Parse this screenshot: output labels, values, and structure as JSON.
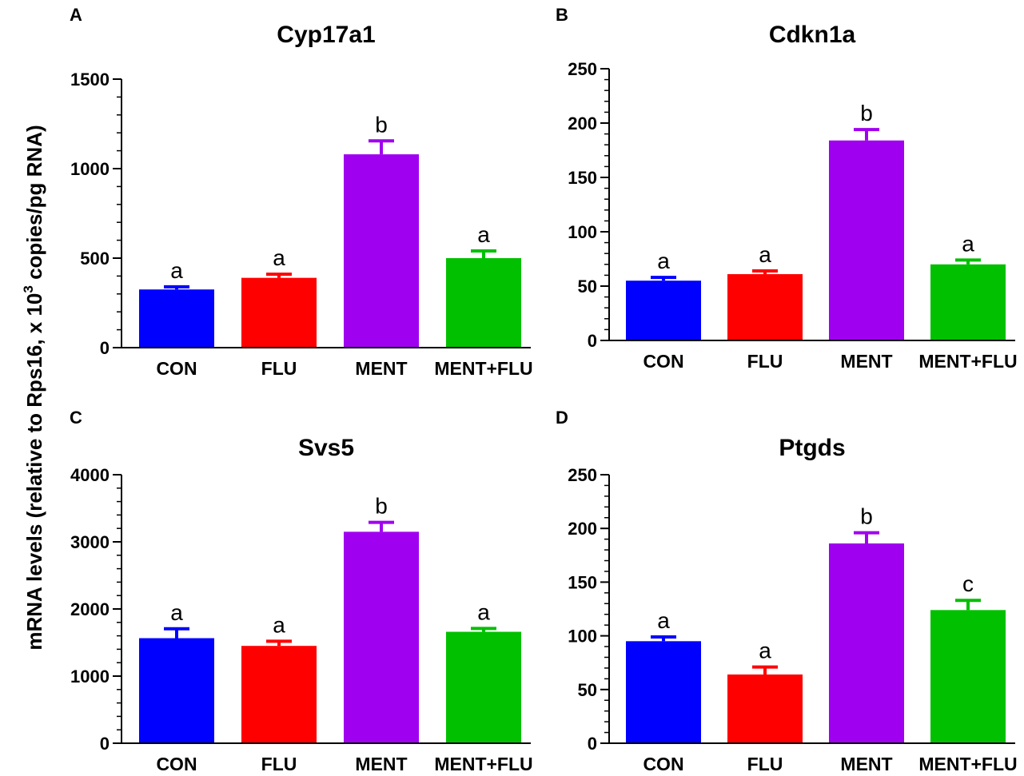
{
  "figure": {
    "ylabel_prefix": "mRNA levels (relative to  Rps16, x 10",
    "ylabel_sup": "3",
    "ylabel_suffix": " copies/pg  RNA)"
  },
  "chart_data": [
    {
      "panel": "A",
      "type": "bar",
      "title": "Cyp17a1",
      "categories": [
        "CON",
        "FLU",
        "MENT",
        "MENT+FLU"
      ],
      "values": [
        325,
        390,
        1080,
        500
      ],
      "errors": [
        15,
        20,
        75,
        40
      ],
      "significance": [
        "a",
        "a",
        "b",
        "a"
      ],
      "colors": [
        "#0000ff",
        "#ff0000",
        "#a000f0",
        "#00c000"
      ],
      "ylim": [
        0,
        1500
      ],
      "yticks": [
        0,
        500,
        1000,
        1500
      ],
      "minor_step": 100,
      "xlabel": "",
      "ylabel": "mRNA levels (relative to Rps16, x 10^3 copies/pg RNA)"
    },
    {
      "panel": "B",
      "type": "bar",
      "title": "Cdkn1a",
      "categories": [
        "CON",
        "FLU",
        "MENT",
        "MENT+FLU"
      ],
      "values": [
        55,
        61,
        184,
        70
      ],
      "errors": [
        3,
        3,
        10,
        4
      ],
      "significance": [
        "a",
        "a",
        "b",
        "a"
      ],
      "colors": [
        "#0000ff",
        "#ff0000",
        "#a000f0",
        "#00c000"
      ],
      "ylim": [
        0,
        250
      ],
      "yticks": [
        0,
        50,
        100,
        150,
        200,
        250
      ],
      "minor_step": 10,
      "xlabel": "",
      "ylabel": ""
    },
    {
      "panel": "C",
      "type": "bar",
      "title": "Svs5",
      "categories": [
        "CON",
        "FLU",
        "MENT",
        "MENT+FLU"
      ],
      "values": [
        1565,
        1450,
        3150,
        1660
      ],
      "errors": [
        140,
        70,
        140,
        50
      ],
      "significance": [
        "a",
        "a",
        "b",
        "a"
      ],
      "colors": [
        "#0000ff",
        "#ff0000",
        "#a000f0",
        "#00c000"
      ],
      "ylim": [
        0,
        4000
      ],
      "yticks": [
        0,
        1000,
        2000,
        3000,
        4000
      ],
      "minor_step": 200,
      "xlabel": "",
      "ylabel": ""
    },
    {
      "panel": "D",
      "type": "bar",
      "title": "Ptgds",
      "categories": [
        "CON",
        "FLU",
        "MENT",
        "MENT+FLU"
      ],
      "values": [
        95,
        64,
        186,
        124
      ],
      "errors": [
        4,
        7,
        10,
        9
      ],
      "significance": [
        "a",
        "a",
        "b",
        "c"
      ],
      "colors": [
        "#0000ff",
        "#ff0000",
        "#a000f0",
        "#00c000"
      ],
      "ylim": [
        0,
        250
      ],
      "yticks": [
        0,
        50,
        100,
        150,
        200,
        250
      ],
      "minor_step": 10,
      "xlabel": "",
      "ylabel": ""
    }
  ]
}
